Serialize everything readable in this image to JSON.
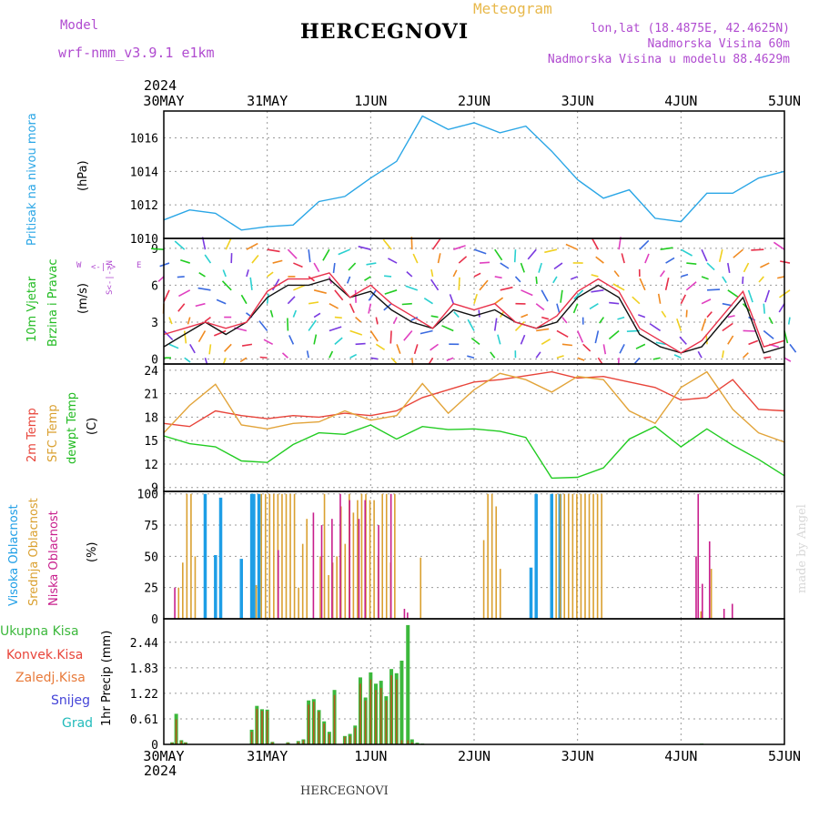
{
  "header": {
    "model_label": "Model",
    "model_name": "wrf-nmm_v3.9.1 e1km",
    "title": "HERCEGNOVI",
    "meteogram_label": "Meteogram",
    "lonlat": "lon,lat (18.4875E, 42.4625N)",
    "elevation": "Nadmorska Visina 60m",
    "model_elevation": "Nadmorska Visina u modelu 88.4629m",
    "year_top": "2024",
    "year_bottom": "2024",
    "footer": "HERCEGNOVI",
    "watermark": "made by Angel"
  },
  "colors": {
    "pressure": "#2aa6e6",
    "temp2m": "#e8443a",
    "sfc": "#e2a43a",
    "dewpt": "#22cc22",
    "high": "#1e9ee6",
    "mid": "#daa030",
    "low": "#c81e8c",
    "total": "#3cb83c",
    "conv": "#e8443a",
    "grid": "#9a9a9a"
  },
  "chart_data": [
    {
      "type": "line",
      "id": "pressure",
      "ylabel": "(hPa)",
      "side_label": "Pritisak na nivou mora",
      "x_labels": [
        "30MAY",
        "31MAY",
        "1JUN",
        "2JUN",
        "3JUN",
        "4JUN",
        "5JUN"
      ],
      "x": [
        0,
        0.25,
        0.5,
        0.75,
        1,
        1.25,
        1.5,
        1.75,
        2,
        2.25,
        2.5,
        2.75,
        3,
        3.25,
        3.5,
        3.75,
        4,
        4.25,
        4.5,
        4.75,
        5,
        5.25,
        5.5,
        5.75,
        6
      ],
      "ylim": [
        1010,
        1017.6
      ],
      "yticks": [
        1010,
        1012,
        1014,
        1016
      ],
      "series": [
        {
          "key": "pressure",
          "values": [
            1011.1,
            1011.7,
            1011.5,
            1010.5,
            1010.7,
            1010.8,
            1012.2,
            1012.5,
            1013.6,
            1014.6,
            1017.3,
            1016.5,
            1016.9,
            1016.3,
            1016.7,
            1015.2,
            1013.5,
            1012.4,
            1012.9,
            1011.2,
            1011.0,
            1012.7,
            1012.7,
            1013.6,
            1014.0
          ]
        }
      ]
    },
    {
      "type": "scatter",
      "id": "wind",
      "ylabel": "(m/s)",
      "side_label": [
        "10m Vjetar",
        "Brzina i Pravac"
      ],
      "compass": {
        "w": "W",
        "e": "E",
        "n": "N",
        "s": "S"
      },
      "ylim": [
        -0.4,
        9.8
      ],
      "yticks": [
        0,
        3,
        6,
        9
      ],
      "x": [
        0,
        0.2,
        0.4,
        0.6,
        0.8,
        1,
        1.2,
        1.4,
        1.6,
        1.8,
        2,
        2.2,
        2.4,
        2.6,
        2.8,
        3,
        3.2,
        3.4,
        3.6,
        3.8,
        4,
        4.2,
        4.4,
        4.6,
        4.8,
        5,
        5.2,
        5.4,
        5.6,
        5.8,
        6
      ],
      "speed": [
        1,
        2,
        3,
        2,
        3,
        5,
        6,
        6,
        6.5,
        5,
        5.5,
        4,
        3,
        2.5,
        4,
        3.5,
        4,
        3,
        2.5,
        3,
        5,
        6,
        5,
        2,
        1,
        0.5,
        1,
        3,
        5,
        0.5,
        1
      ],
      "gust": [
        2,
        2.5,
        3,
        2.5,
        3,
        5.5,
        6.5,
        6.5,
        7,
        5,
        6,
        4.5,
        3.5,
        2.5,
        4.5,
        4,
        4.5,
        3,
        2.5,
        3.5,
        5.5,
        6.5,
        5.5,
        2.5,
        1.5,
        0.5,
        1.5,
        3.5,
        5.5,
        1,
        1.5
      ]
    },
    {
      "type": "line",
      "id": "temperature",
      "ylabel": "(C)",
      "side_labels": [
        "2m Temp",
        "SFC Temp",
        "dewpt Temp"
      ],
      "ylim": [
        8.5,
        24.8
      ],
      "yticks": [
        9,
        12,
        15,
        18,
        21,
        24
      ],
      "x": [
        0,
        0.25,
        0.5,
        0.75,
        1,
        1.25,
        1.5,
        1.75,
        2,
        2.25,
        2.5,
        2.75,
        3,
        3.25,
        3.5,
        3.75,
        4,
        4.25,
        4.5,
        4.75,
        5,
        5.25,
        5.5,
        5.75,
        6
      ],
      "series": [
        {
          "key": "temp2m",
          "values": [
            17.2,
            16.8,
            18.8,
            18.2,
            17.8,
            18.2,
            18.0,
            18.5,
            18.2,
            18.8,
            20.5,
            21.5,
            22.5,
            22.8,
            23.3,
            23.8,
            23.0,
            23.2,
            22.5,
            21.8,
            20.2,
            20.5,
            22.8,
            19.0,
            18.8
          ]
        },
        {
          "key": "sfc",
          "values": [
            16.0,
            19.5,
            22.2,
            17.0,
            16.5,
            17.2,
            17.4,
            18.8,
            17.6,
            18.2,
            22.3,
            18.5,
            21.5,
            23.6,
            22.8,
            21.2,
            23.2,
            22.8,
            18.8,
            17.2,
            21.8,
            23.8,
            19.0,
            16.0,
            14.8
          ]
        },
        {
          "key": "dewpt",
          "values": [
            15.6,
            14.6,
            14.2,
            12.4,
            12.2,
            14.5,
            16.0,
            15.8,
            17.0,
            15.2,
            16.8,
            16.4,
            16.5,
            16.2,
            15.4,
            10.2,
            10.3,
            11.5,
            15.2,
            16.8,
            14.2,
            16.5,
            14.4,
            12.6,
            10.5
          ]
        }
      ]
    },
    {
      "type": "bar",
      "id": "clouds",
      "ylabel": "(%)",
      "side_labels": [
        "Visoka Oblacnost",
        "Srednja Oblacnost",
        "Niska Oblacnost"
      ],
      "ylim": [
        0,
        102
      ],
      "yticks": [
        0,
        25,
        50,
        75,
        100
      ],
      "series": [
        {
          "key": "high",
          "x": [
            0.4,
            0.5,
            0.55,
            0.75,
            0.85,
            0.87,
            0.92,
            3.55,
            3.6,
            3.75,
            3.83
          ],
          "values": [
            100,
            51,
            97,
            48,
            100,
            100,
            100,
            41,
            100,
            100,
            100
          ]
        },
        {
          "key": "mid",
          "x": [
            0.13,
            0.17,
            0.21,
            0.25,
            0.29,
            0.88,
            0.93,
            0.97,
            1.01,
            1.05,
            1.09,
            1.13,
            1.17,
            1.21,
            1.25,
            1.29,
            1.33,
            1.37,
            1.5,
            1.54,
            1.58,
            1.62,
            1.66,
            1.7,
            1.74,
            1.78,
            1.82,
            1.86,
            1.9,
            1.94,
            1.98,
            2.02,
            2.06,
            2.1,
            2.14,
            2.18,
            2.22,
            2.47,
            3.08,
            3.12,
            3.16,
            3.2,
            3.24,
            3.78,
            3.82,
            3.86,
            3.9,
            3.94,
            3.98,
            4.02,
            4.06,
            4.1,
            4.14,
            4.18,
            4.22,
            5.18,
            5.28
          ],
          "values": [
            25,
            45,
            100,
            100,
            50,
            27,
            100,
            100,
            100,
            100,
            100,
            100,
            100,
            100,
            100,
            25,
            60,
            80,
            50,
            100,
            35,
            45,
            50,
            90,
            60,
            100,
            85,
            95,
            100,
            100,
            95,
            95,
            50,
            100,
            100,
            45,
            100,
            49,
            63,
            100,
            100,
            90,
            40,
            100,
            100,
            100,
            100,
            100,
            100,
            100,
            100,
            100,
            100,
            100,
            100,
            6,
            40
          ]
        },
        {
          "key": "low",
          "x": [
            0.08,
            1.08,
            1.42,
            1.5,
            1.6,
            1.68,
            1.77,
            1.86,
            1.92,
            2.05,
            2.17,
            2.3,
            2.33,
            5.12,
            5.14,
            5.18,
            5.25,
            5.39,
            5.47
          ],
          "values": [
            25,
            55,
            85,
            75,
            80,
            100,
            95,
            80,
            95,
            75,
            100,
            8,
            5,
            50,
            100,
            28,
            62,
            8,
            12
          ]
        }
      ]
    },
    {
      "type": "bar",
      "id": "precip",
      "ylabel": "1hr Precip (mm)",
      "side_labels": [
        "Ukupna Kisa",
        "Konvek.Kisa",
        "Zaledj.Kisa",
        "Snijeg",
        "Grad"
      ],
      "ylim": [
        0,
        3.0
      ],
      "yticks": [
        0,
        0.61,
        1.22,
        1.83,
        2.44
      ],
      "ytick_labels": [
        "0",
        "0.61",
        "1.22",
        "1.83",
        "2.44"
      ],
      "x": [
        0.08,
        0.12,
        0.17,
        0.21,
        0.85,
        0.9,
        0.95,
        1.0,
        1.05,
        1.2,
        1.3,
        1.35,
        1.4,
        1.45,
        1.5,
        1.55,
        1.6,
        1.65,
        1.75,
        1.8,
        1.85,
        1.9,
        1.95,
        2.0,
        2.05,
        2.1,
        2.15,
        2.2,
        2.25,
        2.3,
        2.36,
        2.4,
        2.45,
        2.5,
        3.1,
        4.5,
        5.2
      ],
      "total": [
        0.05,
        0.73,
        0.1,
        0.05,
        0.35,
        0.92,
        0.84,
        0.83,
        0.06,
        0.05,
        0.08,
        0.12,
        1.05,
        1.08,
        0.82,
        0.55,
        0.3,
        1.3,
        0.2,
        0.25,
        0.45,
        1.6,
        1.12,
        1.72,
        1.45,
        1.52,
        1.15,
        1.8,
        1.7,
        2.0,
        2.85,
        0.12,
        0.04,
        0.02,
        0.01,
        0.01,
        0.02
      ],
      "conv": [
        0.04,
        0.6,
        0.08,
        0.04,
        0.3,
        0.85,
        0.8,
        0.8,
        0.05,
        0.04,
        0.06,
        0.1,
        0.95,
        1.02,
        0.78,
        0.5,
        0.25,
        1.18,
        0.18,
        0.2,
        0.4,
        1.45,
        1.05,
        1.55,
        1.3,
        1.35,
        1.05,
        1.65,
        1.55,
        0.1,
        0.1,
        0.05,
        0.02,
        0.01,
        0.01,
        0.01,
        0.01
      ]
    }
  ]
}
